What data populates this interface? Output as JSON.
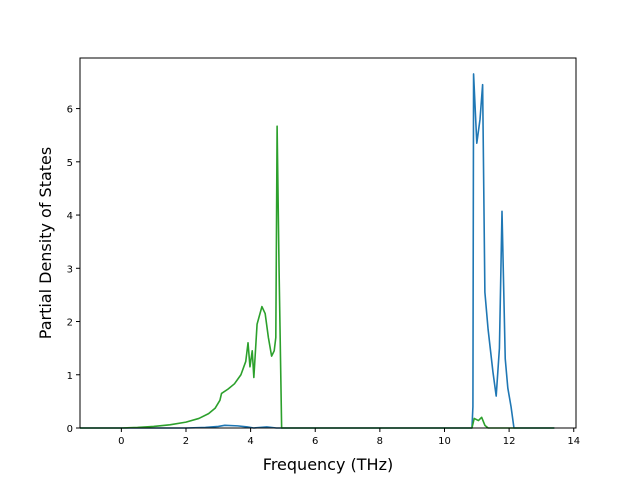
{
  "chart_data": {
    "type": "line",
    "title": "",
    "xlabel": "Frequency (THz)",
    "ylabel": "Partial Density of States",
    "xlim": [
      -1.28,
      14.07
    ],
    "ylim": [
      0,
      6.95
    ],
    "grid": false,
    "xticks": [
      0,
      2,
      4,
      6,
      8,
      10,
      12,
      14
    ],
    "yticks": [
      0,
      1,
      2,
      3,
      4,
      5,
      6
    ],
    "series": [
      {
        "color": "#1f77b4",
        "points": [
          [
            -1.28,
            0
          ],
          [
            2.0,
            0.0
          ],
          [
            2.6,
            0.01
          ],
          [
            3.0,
            0.03
          ],
          [
            3.2,
            0.05
          ],
          [
            3.6,
            0.04
          ],
          [
            3.9,
            0.02
          ],
          [
            4.1,
            0.0
          ],
          [
            4.5,
            0.02
          ],
          [
            4.8,
            0.0
          ],
          [
            5.0,
            0.0
          ],
          [
            10.85,
            0.0
          ],
          [
            10.88,
            0.4
          ],
          [
            10.9,
            6.65
          ],
          [
            11.0,
            5.35
          ],
          [
            11.1,
            5.8
          ],
          [
            11.18,
            6.45
          ],
          [
            11.25,
            2.55
          ],
          [
            11.35,
            1.85
          ],
          [
            11.5,
            1.05
          ],
          [
            11.6,
            0.6
          ],
          [
            11.7,
            1.5
          ],
          [
            11.78,
            4.07
          ],
          [
            11.88,
            1.3
          ],
          [
            11.96,
            0.75
          ],
          [
            12.06,
            0.4
          ],
          [
            12.15,
            0.0
          ],
          [
            13.4,
            0
          ]
        ]
      },
      {
        "color": "#2ca02c",
        "points": [
          [
            -1.28,
            0
          ],
          [
            0.0,
            0.0
          ],
          [
            0.5,
            0.01
          ],
          [
            1.0,
            0.03
          ],
          [
            1.5,
            0.06
          ],
          [
            2.0,
            0.11
          ],
          [
            2.4,
            0.18
          ],
          [
            2.7,
            0.27
          ],
          [
            2.9,
            0.37
          ],
          [
            3.05,
            0.52
          ],
          [
            3.1,
            0.65
          ],
          [
            3.3,
            0.73
          ],
          [
            3.5,
            0.83
          ],
          [
            3.7,
            1.0
          ],
          [
            3.85,
            1.25
          ],
          [
            3.92,
            1.6
          ],
          [
            3.98,
            1.15
          ],
          [
            4.05,
            1.45
          ],
          [
            4.1,
            0.95
          ],
          [
            4.2,
            1.95
          ],
          [
            4.35,
            2.28
          ],
          [
            4.45,
            2.15
          ],
          [
            4.55,
            1.7
          ],
          [
            4.65,
            1.35
          ],
          [
            4.73,
            1.45
          ],
          [
            4.78,
            1.7
          ],
          [
            4.82,
            5.67
          ],
          [
            4.88,
            3.0
          ],
          [
            4.96,
            0.0
          ],
          [
            10.85,
            0.0
          ],
          [
            10.92,
            0.18
          ],
          [
            11.05,
            0.14
          ],
          [
            11.15,
            0.2
          ],
          [
            11.25,
            0.05
          ],
          [
            11.35,
            0.0
          ],
          [
            13.4,
            0
          ]
        ]
      }
    ]
  }
}
